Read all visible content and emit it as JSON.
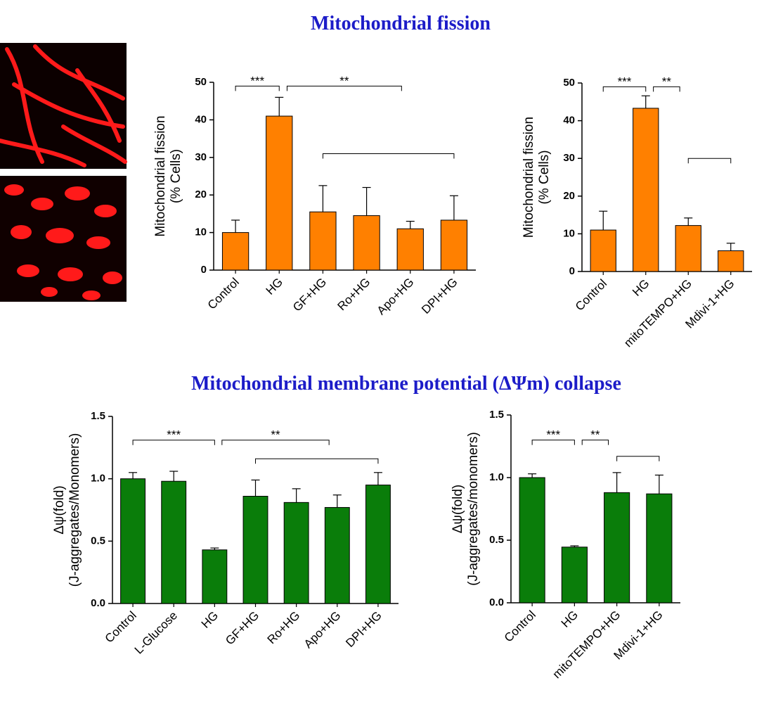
{
  "headings": [
    "Mitochondrial fission",
    "Mitochondrial membrane potential (ΔΨm) collapse"
  ],
  "chart_data": [
    {
      "type": "bar",
      "ylabel": [
        "Mitochondrial fission",
        "(% Cells)"
      ],
      "color": "#ff8000",
      "categories": [
        "Control",
        "HG",
        "GF+HG",
        "Ro+HG",
        "Apo+HG",
        "DPI+HG"
      ],
      "values": [
        10,
        41,
        15.5,
        14.5,
        11,
        13.3
      ],
      "errors": [
        3.3,
        5,
        7,
        7.5,
        2,
        6.5
      ],
      "ylim": [
        0,
        50
      ],
      "yticks": [
        0,
        10,
        20,
        30,
        40,
        50
      ],
      "annotations": [
        {
          "text": "***",
          "from": "Control",
          "to": "HG",
          "level": 49
        },
        {
          "text": "**",
          "from": "HG",
          "to": "Apo+HG",
          "level": 49
        },
        {
          "from": "GF+HG",
          "to": "DPI+HG",
          "level": 31
        }
      ]
    },
    {
      "type": "bar",
      "ylabel": [
        "Mitochondrial fission",
        "(% Cells)"
      ],
      "color": "#ff8000",
      "categories": [
        "Control",
        "HG",
        "mitoTEMPO+HG",
        "Mdivi-1+HG"
      ],
      "values": [
        11,
        43.3,
        12.2,
        5.5
      ],
      "errors": [
        5,
        3.3,
        2,
        2
      ],
      "ylim": [
        0,
        50
      ],
      "yticks": [
        0,
        10,
        20,
        30,
        40,
        50
      ],
      "annotations": [
        {
          "text": "***",
          "from": "Control",
          "to": "HG",
          "level": 49
        },
        {
          "text": "**",
          "from": "HG",
          "to": "mitoTEMPO+HG",
          "level": 49
        },
        {
          "from": "mitoTEMPO+HG",
          "to": "Mdivi-1+HG",
          "level": 30
        }
      ]
    },
    {
      "type": "bar",
      "ylabel": [
        "Δψ(fold)",
        "(J-aggregates/Monomers)"
      ],
      "color": "#0a7d0a",
      "categories": [
        "Control",
        "L-Glucose",
        "HG",
        "GF+HG",
        "Ro+HG",
        "Apo+HG",
        "DPI+HG"
      ],
      "values": [
        1.0,
        0.98,
        0.43,
        0.86,
        0.81,
        0.77,
        0.95
      ],
      "errors": [
        0.05,
        0.08,
        0.015,
        0.13,
        0.11,
        0.1,
        0.1
      ],
      "ylim": [
        0,
        1.5
      ],
      "yticks": [
        {
          "value": 0,
          "label": "0.0"
        },
        0.5,
        {
          "value": 1,
          "label": "1.0"
        },
        1.5
      ],
      "annotations": [
        {
          "text": "***",
          "from": "Control",
          "to": "HG",
          "level": 1.31
        },
        {
          "text": "**",
          "from": "HG",
          "to": "Apo+HG",
          "level": 1.31
        },
        {
          "from": "GF+HG",
          "to": "DPI+HG",
          "level": 1.16
        }
      ]
    },
    {
      "type": "bar",
      "ylabel": [
        "Δψ(fold)",
        "(J-aggregates/monomers)"
      ],
      "color": "#0a7d0a",
      "categories": [
        "Control",
        "HG",
        "mitoTEMPO+HG",
        "Mdivi-1+HG"
      ],
      "values": [
        1.0,
        0.445,
        0.88,
        0.87
      ],
      "errors": [
        0.03,
        0.01,
        0.16,
        0.15
      ],
      "ylim": [
        0,
        1.5
      ],
      "yticks": [
        {
          "value": 0,
          "label": "0.0"
        },
        0.5,
        {
          "value": 1,
          "label": "1.0"
        },
        1.5
      ],
      "annotations": [
        {
          "text": "***",
          "from": "Control",
          "to": "HG",
          "level": 1.3
        },
        {
          "text": "**",
          "from": "HG",
          "to": "mitoTEMPO+HG",
          "level": 1.3
        },
        {
          "from": "mitoTEMPO+HG",
          "to": "Mdivi-1+HG",
          "level": 1.17
        }
      ]
    }
  ]
}
